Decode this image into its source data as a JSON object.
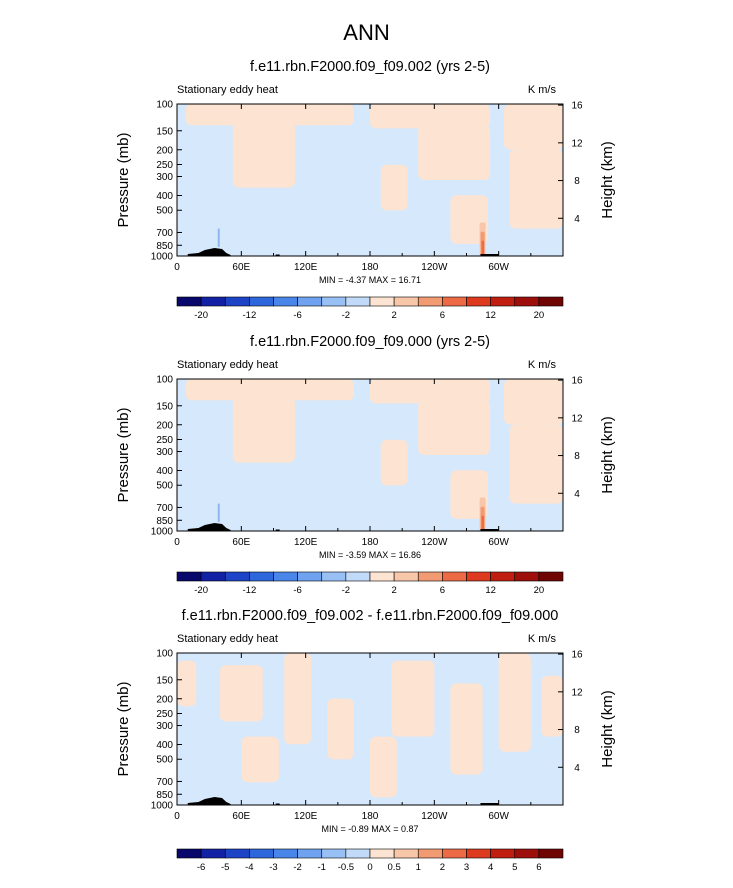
{
  "page_title": "ANN",
  "colors": {
    "ocean_blue": "#d6e8fb",
    "land_peach": "#fde3d1",
    "orange_1": "#f8c6a8",
    "orange_2": "#f29a72",
    "orange_3": "#ec6a45",
    "orange_4": "#e24a2a",
    "blue_1": "#8fb6ee",
    "topo_black": "#000000"
  },
  "colorbar": {
    "colors": [
      "#08076b",
      "#1321a5",
      "#1d44c7",
      "#2e66dc",
      "#4a86ea",
      "#6fa3f0",
      "#98c0f5",
      "#c2daf9",
      "#fde3d1",
      "#f8c6a8",
      "#f29a72",
      "#ec6a45",
      "#dd3a1f",
      "#bf1e10",
      "#9c0f0a",
      "#6f0604"
    ]
  },
  "chart_data": [
    {
      "type": "heatmap",
      "title": "f.e11.rbn.F2000.f09_f09.002 (yrs 2-5)",
      "left_label": "Stationary eddy heat",
      "units": "K m/s",
      "ylabel": "Pressure (mb)",
      "ylabel_right": "Height (km)",
      "x_ticks": [
        "0",
        "60E",
        "120E",
        "180",
        "120W",
        "60W"
      ],
      "x_range_deg": [
        0,
        360
      ],
      "y_ticks": [
        "100",
        "150",
        "200",
        "250",
        "300",
        "400",
        "500",
        "700",
        "850",
        "1000"
      ],
      "y_log_scale": true,
      "y_range_mb": [
        1000,
        100
      ],
      "y_right_ticks": [
        "4",
        "8",
        "12",
        "16"
      ],
      "stats": "MIN = -4.37  MAX = 16.71",
      "colorbar_labels": [
        "-20",
        "-12",
        "-6",
        "-2",
        "2",
        "6",
        "12",
        "20"
      ]
    },
    {
      "type": "heatmap",
      "title": "f.e11.rbn.F2000.f09_f09.000 (yrs 2-5)",
      "left_label": "Stationary eddy heat",
      "units": "K m/s",
      "ylabel": "Pressure (mb)",
      "ylabel_right": "Height (km)",
      "x_ticks": [
        "0",
        "60E",
        "120E",
        "180",
        "120W",
        "60W"
      ],
      "x_range_deg": [
        0,
        360
      ],
      "y_ticks": [
        "100",
        "150",
        "200",
        "250",
        "300",
        "400",
        "500",
        "700",
        "850",
        "1000"
      ],
      "y_log_scale": true,
      "y_range_mb": [
        1000,
        100
      ],
      "y_right_ticks": [
        "4",
        "8",
        "12",
        "16"
      ],
      "stats": "MIN = -3.59  MAX = 16.86",
      "colorbar_labels": [
        "-20",
        "-12",
        "-6",
        "-2",
        "2",
        "6",
        "12",
        "20"
      ]
    },
    {
      "type": "heatmap",
      "title": "f.e11.rbn.F2000.f09_f09.002 - f.e11.rbn.F2000.f09_f09.000",
      "left_label": "Stationary eddy heat",
      "units": "K m/s",
      "ylabel": "Pressure (mb)",
      "ylabel_right": "Height (km)",
      "x_ticks": [
        "0",
        "60E",
        "120E",
        "180",
        "120W",
        "60W"
      ],
      "x_range_deg": [
        0,
        360
      ],
      "y_ticks": [
        "100",
        "150",
        "200",
        "250",
        "300",
        "400",
        "500",
        "700",
        "850",
        "1000"
      ],
      "y_log_scale": true,
      "y_range_mb": [
        1000,
        100
      ],
      "y_right_ticks": [
        "4",
        "8",
        "12",
        "16"
      ],
      "stats": "MIN = -0.89  MAX = 0.87",
      "colorbar_labels": [
        "-6",
        "-5",
        "-4",
        "-3",
        "-2",
        "-1",
        "-0.5",
        "0",
        "0.5",
        "1",
        "2",
        "3",
        "4",
        "5",
        "6"
      ]
    }
  ]
}
